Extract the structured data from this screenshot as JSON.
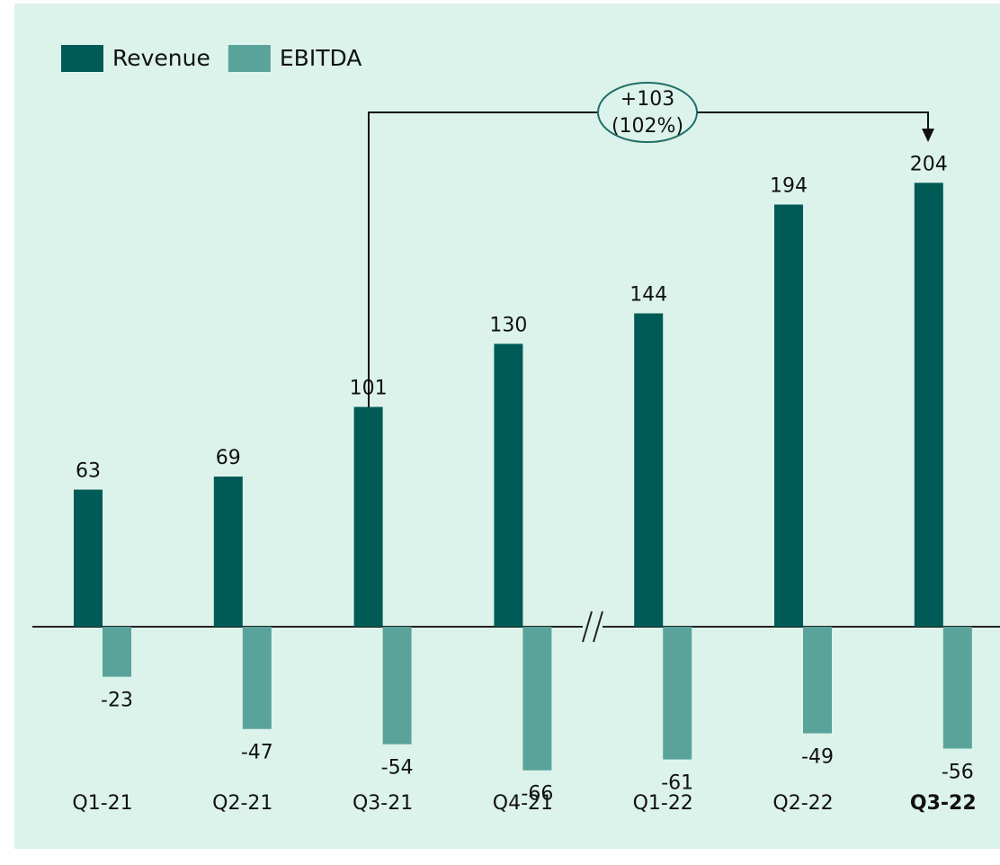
{
  "chart_data": {
    "type": "bar",
    "categories": [
      "Q1-21",
      "Q2-21",
      "Q3-21",
      "Q4-21",
      "Q1-22",
      "Q2-22",
      "Q3-22"
    ],
    "series": [
      {
        "name": "Revenue",
        "color": "#005a55",
        "values": [
          63,
          69,
          101,
          130,
          144,
          194,
          204
        ]
      },
      {
        "name": "EBITDA",
        "color": "#5aa39a",
        "values": [
          -23,
          -47,
          -54,
          -66,
          -61,
          -49,
          -56
        ]
      }
    ],
    "annotation": [
      "+103",
      "(102%)"
    ],
    "legend": "top-left"
  }
}
